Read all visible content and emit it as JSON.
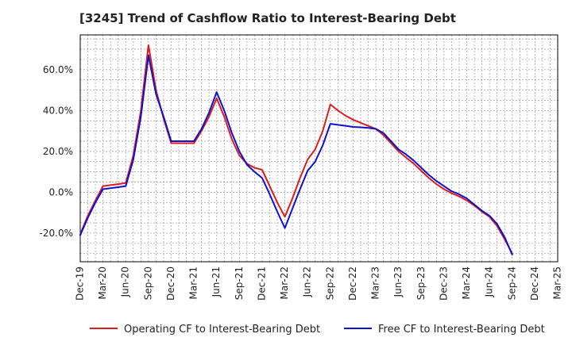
{
  "chart_data": {
    "type": "line",
    "title": "[3245]  Trend of Cashflow Ratio to Interest-Bearing Debt",
    "xlabel": "",
    "ylabel": "",
    "grid": true,
    "legend_position": "bottom",
    "x_tick_labels": [
      "Dec-19",
      "Mar-20",
      "Jun-20",
      "Sep-20",
      "Dec-20",
      "Mar-21",
      "Jun-21",
      "Sep-21",
      "Dec-21",
      "Mar-22",
      "Jun-22",
      "Sep-22",
      "Dec-22",
      "Mar-23",
      "Jun-23",
      "Sep-23",
      "Dec-23",
      "Mar-24",
      "Jun-24",
      "Sep-24",
      "Dec-24",
      "Mar-25"
    ],
    "y_ticks": [
      -20,
      0,
      20,
      40,
      60
    ],
    "y_tick_labels": [
      "-20.0%",
      "0.0%",
      "20.0%",
      "40.0%",
      "60.0%"
    ],
    "ylim": [
      -34,
      77
    ],
    "x": [
      "Dec-19",
      "Jan-20",
      "Feb-20",
      "Mar-20",
      "Apr-20",
      "May-20",
      "Jun-20",
      "Jul-20",
      "Aug-20",
      "Sep-20",
      "Oct-20",
      "Nov-20",
      "Dec-20",
      "Jan-21",
      "Feb-21",
      "Mar-21",
      "Apr-21",
      "May-21",
      "Jun-21",
      "Jul-21",
      "Aug-21",
      "Sep-21",
      "Oct-21",
      "Nov-21",
      "Dec-21",
      "Jan-22",
      "Feb-22",
      "Mar-22",
      "Apr-22",
      "May-22",
      "Jun-22",
      "Jul-22",
      "Aug-22",
      "Sep-22",
      "Oct-22",
      "Nov-22",
      "Dec-22",
      "Jan-23",
      "Feb-23",
      "Mar-23",
      "Apr-23",
      "May-23",
      "Jun-23",
      "Jul-23",
      "Aug-23",
      "Sep-23",
      "Oct-23",
      "Nov-23",
      "Dec-23",
      "Jan-24",
      "Feb-24",
      "Mar-24",
      "Apr-24",
      "May-24",
      "Jun-24",
      "Jul-24",
      "Aug-24",
      "Sep-24"
    ],
    "series": [
      {
        "name": "Operating CF to Interest-Bearing Debt",
        "color": "#dd1c1c",
        "values": [
          -20.5,
          -11.5,
          -4,
          3,
          3.5,
          4,
          4.5,
          18,
          40,
          72,
          50,
          36,
          24,
          24,
          24,
          24,
          30,
          37,
          46,
          37,
          26,
          18,
          14,
          12,
          11,
          3,
          -5,
          -12,
          -3,
          7,
          16,
          21,
          30,
          43,
          40,
          37.5,
          35.5,
          34,
          32.5,
          31,
          28,
          24,
          20,
          17,
          14,
          10.5,
          7,
          4,
          1.5,
          -0.5,
          -2,
          -4,
          -6.5,
          -9.5,
          -12,
          -16.5,
          -23,
          -30
        ]
      },
      {
        "name": "Free CF to Interest-Bearing Debt",
        "color": "#1010d0",
        "values": [
          -21,
          -12.5,
          -5,
          1.5,
          2,
          2.5,
          3,
          16,
          37,
          67,
          48,
          37,
          25,
          25,
          25,
          25,
          31,
          39,
          49,
          40,
          29,
          20,
          13.5,
          10,
          7,
          -1,
          -9.5,
          -17.5,
          -8,
          1.5,
          10.5,
          15,
          23,
          33.5,
          33,
          32.5,
          32,
          31.8,
          31.5,
          31,
          29,
          25,
          21,
          18.5,
          15.5,
          12,
          8.5,
          5.5,
          3,
          0.5,
          -1,
          -3,
          -6,
          -9,
          -11.5,
          -15.5,
          -22,
          -30.5
        ]
      }
    ]
  }
}
